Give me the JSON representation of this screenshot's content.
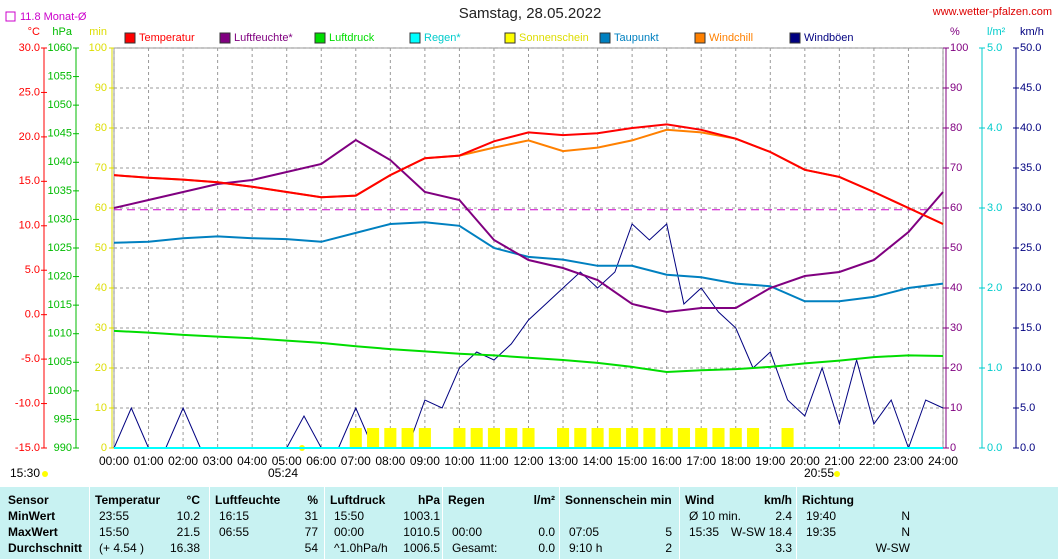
{
  "chart_data": {
    "type": "line",
    "title": "Samstag, 28.05.2022",
    "site": "www.wetter-pfalzen.com",
    "monthly_mean": {
      "label": "11.8 Monat-Ø",
      "value": 11.8,
      "color": "#cc00cc",
      "axis": 0
    },
    "footer_time": "15:30",
    "sunrise": "05:24",
    "sunset": "20:55",
    "x": [
      0,
      1,
      2,
      3,
      4,
      5,
      6,
      7,
      8,
      9,
      10,
      11,
      12,
      13,
      14,
      15,
      16,
      17,
      18,
      19,
      20,
      21,
      22,
      23,
      24
    ],
    "xlim": [
      0,
      24
    ],
    "xticks": [
      {
        "value": 0,
        "label": "00:00"
      },
      {
        "value": 1,
        "label": "01:00"
      },
      {
        "value": 2,
        "label": "02:00"
      },
      {
        "value": 3,
        "label": "03:00"
      },
      {
        "value": 4,
        "label": "04:00"
      },
      {
        "value": 5,
        "label": "05:00"
      },
      {
        "value": 6,
        "label": "06:00"
      },
      {
        "value": 7,
        "label": "07:00"
      },
      {
        "value": 8,
        "label": "08:00"
      },
      {
        "value": 9,
        "label": "09:00"
      },
      {
        "value": 10,
        "label": "10:00"
      },
      {
        "value": 11,
        "label": "11:00"
      },
      {
        "value": 12,
        "label": "12:00"
      },
      {
        "value": 13,
        "label": "13:00"
      },
      {
        "value": 14,
        "label": "14:00"
      },
      {
        "value": 15,
        "label": "15:00"
      },
      {
        "value": 16,
        "label": "16:00"
      },
      {
        "value": 17,
        "label": "17:00"
      },
      {
        "value": 18,
        "label": "18:00"
      },
      {
        "value": 19,
        "label": "19:00"
      },
      {
        "value": 20,
        "label": "20:00"
      },
      {
        "value": 21,
        "label": "21:00"
      },
      {
        "value": 22,
        "label": "22:00"
      },
      {
        "value": 23,
        "label": "23:00"
      },
      {
        "value": 24,
        "label": "24:00"
      }
    ],
    "grid": true,
    "axes": [
      {
        "label": "°C",
        "color": "#ff0000",
        "side": "left",
        "lim": [
          -15,
          30
        ],
        "ticks": [
          {
            "value": -15,
            "label": "-15.0"
          },
          {
            "value": -10,
            "label": "-10.0"
          },
          {
            "value": -5,
            "label": "-5.0"
          },
          {
            "value": 0,
            "label": "0.0"
          },
          {
            "value": 5,
            "label": "5.0"
          },
          {
            "value": 10,
            "label": "10.0"
          },
          {
            "value": 15,
            "label": "15.0"
          },
          {
            "value": 20,
            "label": "20.0"
          },
          {
            "value": 25,
            "label": "25.0"
          },
          {
            "value": 30,
            "label": "30.0"
          }
        ]
      },
      {
        "label": "hPa",
        "color": "#00bb00",
        "side": "left",
        "lim": [
          990,
          1060
        ],
        "ticks": [
          990,
          995,
          1000,
          1005,
          1010,
          1015,
          1020,
          1025,
          1030,
          1035,
          1040,
          1045,
          1050,
          1055,
          1060
        ]
      },
      {
        "label": "min",
        "color": "#dddd00",
        "side": "left",
        "lim": [
          0,
          100
        ],
        "ticks": [
          0,
          10,
          20,
          30,
          40,
          50,
          60,
          70,
          80,
          90,
          100
        ]
      },
      {
        "label": "%",
        "color": "#800080",
        "side": "right",
        "lim": [
          0,
          100
        ],
        "ticks": [
          0,
          10,
          20,
          30,
          40,
          50,
          60,
          70,
          80,
          90,
          100
        ],
        "grid": true
      },
      {
        "label": "l/m²",
        "color": "#00cccc",
        "side": "right",
        "lim": [
          0,
          5
        ],
        "ticks": [
          {
            "value": 0,
            "label": "0.0"
          },
          {
            "value": 1,
            "label": "1.0"
          },
          {
            "value": 2,
            "label": "2.0"
          },
          {
            "value": 3,
            "label": "3.0"
          },
          {
            "value": 4,
            "label": "4.0"
          },
          {
            "value": 5,
            "label": "5.0"
          }
        ]
      },
      {
        "label": "km/h",
        "color": "#000080",
        "side": "right",
        "lim": [
          0,
          50
        ],
        "ticks": [
          {
            "value": 0,
            "label": "0.0"
          },
          {
            "value": 5,
            "label": "5.0"
          },
          {
            "value": 10,
            "label": "10.0"
          },
          {
            "value": 15,
            "label": "15.0"
          },
          {
            "value": 20,
            "label": "20.0"
          },
          {
            "value": 25,
            "label": "25.0"
          },
          {
            "value": 30,
            "label": "30.0"
          },
          {
            "value": 35,
            "label": "35.0"
          },
          {
            "value": 40,
            "label": "40.0"
          },
          {
            "value": 45,
            "label": "45.0"
          },
          {
            "value": 50,
            "label": "50.0"
          }
        ]
      }
    ],
    "series": [
      {
        "name": "Temperatur",
        "color": "#ff0000",
        "axis": 0,
        "kind": "line",
        "values": [
          15.7,
          15.4,
          15.2,
          14.9,
          14.4,
          13.8,
          13.2,
          13.4,
          15.7,
          17.6,
          17.9,
          19.5,
          20.5,
          20.2,
          20.4,
          21.0,
          21.4,
          20.8,
          19.8,
          18.3,
          16.3,
          15.5,
          13.8,
          12.0,
          10.2
        ]
      },
      {
        "name": "Luftfeuchte*",
        "color": "#800080",
        "axis": 3,
        "kind": "line",
        "values": [
          60,
          62,
          64,
          66,
          67,
          69,
          71,
          77,
          72,
          64,
          62,
          52,
          47,
          45,
          42,
          36,
          34,
          35,
          35,
          40,
          43,
          44,
          47,
          54,
          64
        ]
      },
      {
        "name": "Luftdruck",
        "color": "#00dd00",
        "axis": 1,
        "kind": "line",
        "values": [
          1010.5,
          1010.2,
          1009.8,
          1009.5,
          1009.2,
          1008.8,
          1008.4,
          1007.8,
          1007.3,
          1006.9,
          1006.5,
          1006.2,
          1005.8,
          1005.4,
          1004.9,
          1004.2,
          1003.3,
          1003.6,
          1003.8,
          1004.2,
          1004.8,
          1005.3,
          1005.9,
          1006.2,
          1006.1
        ]
      },
      {
        "name": "Regen*",
        "color": "#00ffff",
        "axis": 4,
        "kind": "line",
        "values": [
          0,
          0,
          0,
          0,
          0,
          0,
          0,
          0,
          0,
          0,
          0,
          0,
          0,
          0,
          0,
          0,
          0,
          0,
          0,
          0,
          0,
          0,
          0,
          0,
          0
        ]
      },
      {
        "name": "Sonnenschein",
        "color": "#ffff00",
        "axis": 2,
        "kind": "bar",
        "x": [
          0,
          0.5,
          1,
          1.5,
          2,
          2.5,
          3,
          3.5,
          4,
          4.5,
          5,
          5.5,
          6,
          6.5,
          7,
          7.5,
          8,
          8.5,
          9,
          9.5,
          10,
          10.5,
          11,
          11.5,
          12,
          12.5,
          13,
          13.5,
          14,
          14.5,
          15,
          15.5,
          16,
          16.5,
          17,
          17.5,
          18,
          18.5,
          19,
          19.5,
          20,
          20.5,
          21,
          21.5,
          22,
          22.5,
          23,
          23.5,
          24
        ],
        "values": [
          0,
          0,
          0,
          0,
          0,
          0,
          0,
          0,
          0,
          0,
          0,
          0,
          0,
          0,
          5,
          5,
          5,
          5,
          5,
          0,
          5,
          5,
          5,
          5,
          5,
          0,
          5,
          5,
          5,
          5,
          5,
          5,
          5,
          5,
          5,
          5,
          5,
          5,
          0,
          5,
          0,
          0,
          0,
          0,
          0,
          0,
          0,
          0,
          0
        ]
      },
      {
        "name": "Taupunkt",
        "color": "#0080c0",
        "axis": 0,
        "kind": "line",
        "values": [
          8.1,
          8.2,
          8.6,
          8.8,
          8.6,
          8.5,
          8.2,
          9.2,
          10.2,
          10.4,
          10.0,
          7.5,
          6.5,
          6.2,
          5.5,
          5.5,
          4.5,
          4.2,
          3.5,
          3.2,
          1.5,
          1.5,
          2.0,
          3.0,
          3.5
        ]
      },
      {
        "name": "Windchill",
        "color": "#ff8000",
        "axis": 0,
        "kind": "line",
        "values": [
          15.7,
          15.4,
          15.2,
          14.9,
          14.4,
          13.8,
          13.2,
          13.4,
          15.7,
          17.6,
          17.9,
          18.8,
          19.6,
          18.4,
          18.8,
          19.6,
          20.8,
          20.5,
          19.8,
          18.3,
          16.3,
          15.5,
          13.8,
          12.0,
          10.2
        ]
      },
      {
        "name": "Windböen",
        "color": "#000080",
        "axis": 5,
        "kind": "line",
        "x": [
          0,
          0.5,
          1,
          1.5,
          2,
          2.5,
          3,
          3.5,
          4,
          4.5,
          5,
          5.5,
          6,
          6.5,
          7,
          7.5,
          8,
          8.5,
          9,
          9.5,
          10,
          10.5,
          11,
          11.5,
          12,
          12.5,
          13,
          13.5,
          14,
          14.5,
          15,
          15.5,
          16,
          16.5,
          17,
          17.5,
          18,
          18.5,
          19,
          19.5,
          20,
          20.5,
          21,
          21.5,
          22,
          22.5,
          23,
          23.5,
          24
        ],
        "values": [
          0,
          5,
          0,
          0,
          5,
          0,
          0,
          0,
          0,
          0,
          0,
          4,
          0,
          0,
          5,
          0,
          0,
          0,
          6,
          5,
          10,
          12,
          11,
          13,
          16,
          18,
          20,
          22,
          20,
          22,
          28,
          26,
          28,
          18,
          20,
          17,
          15,
          10,
          12,
          6,
          4,
          10,
          3,
          11,
          3,
          6,
          0,
          6,
          5
        ]
      }
    ]
  },
  "table": {
    "header": [
      {
        "name": "Sensor"
      },
      {
        "name": "Temperatur",
        "unit": "°C"
      },
      {
        "name": "Luftfeuchte",
        "unit": "%"
      },
      {
        "name": "Luftdruck",
        "unit": "hPa"
      },
      {
        "name": "Regen",
        "unit": "l/m²"
      },
      {
        "name": "Sonnenschein min"
      },
      {
        "name": "Wind",
        "unit": "km/h"
      },
      {
        "name": "Richtung"
      }
    ],
    "rows": [
      {
        "label": "MinWert",
        "cells": [
          {
            "left": "23:55",
            "right": "10.2"
          },
          {
            "left": "16:15",
            "right": "31"
          },
          {
            "left": "15:50",
            "right": "1003.1"
          },
          null,
          null,
          {
            "left": "Ø 10 min.",
            "right": "2.4"
          },
          {
            "left": "19:40",
            "right": "N"
          }
        ]
      },
      {
        "label": "MaxWert",
        "cells": [
          {
            "left": "15:50",
            "right": "21.5"
          },
          {
            "left": "06:55",
            "right": "77"
          },
          {
            "left": "00:00",
            "right": "1010.5"
          },
          {
            "left": "00:00",
            "right": "0.0"
          },
          {
            "left": "07:05",
            "right": "5"
          },
          {
            "left": "15:35",
            "right": "W-SW 18.4"
          },
          {
            "left": "19:35",
            "right": "N"
          }
        ]
      },
      {
        "label": "Durchschnitt",
        "cells": [
          {
            "left": "(+ 4.54 )",
            "right": "16.38"
          },
          {
            "right": "54"
          },
          {
            "left": "^1.0hPa/h",
            "right": "1006.5"
          },
          {
            "left": "Gesamt:",
            "right": "0.0"
          },
          {
            "left": "9:10 h",
            "right": "2"
          },
          {
            "right": "3.3"
          },
          {
            "right": "W-SW"
          }
        ]
      }
    ]
  }
}
